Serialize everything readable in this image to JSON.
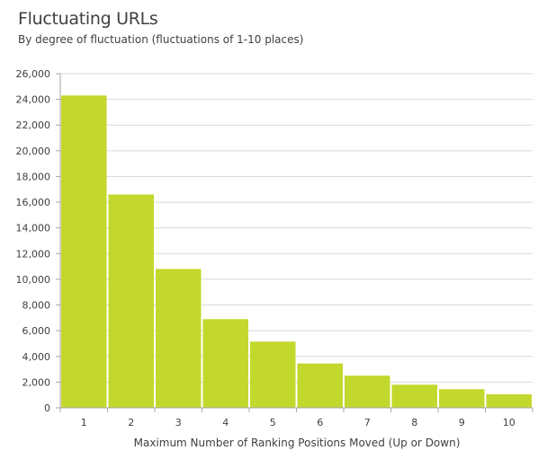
{
  "chart_data": {
    "type": "bar",
    "title": "Fluctuating URLs",
    "subtitle": "By degree of fluctuation (fluctuations of 1-10 places)",
    "xlabel": "Maximum Number of Ranking Positions Moved (Up or Down)",
    "ylabel": "",
    "categories": [
      "1",
      "2",
      "3",
      "4",
      "5",
      "6",
      "7",
      "8",
      "9",
      "10"
    ],
    "values": [
      24300,
      16600,
      10800,
      6900,
      5150,
      3450,
      2500,
      1800,
      1450,
      1050
    ],
    "ylim": [
      0,
      26000
    ],
    "yticks": [
      "0",
      "2,000",
      "4,000",
      "6,000",
      "8,000",
      "10,000",
      "12,000",
      "14,000",
      "16,000",
      "18,000",
      "20,000",
      "22,000",
      "24,000",
      "26,000"
    ],
    "grid": true,
    "legend": "none",
    "bar_color": "#c3d82c",
    "grid_color": "#d9d9d9",
    "axis_color": "#a6a6a6"
  }
}
